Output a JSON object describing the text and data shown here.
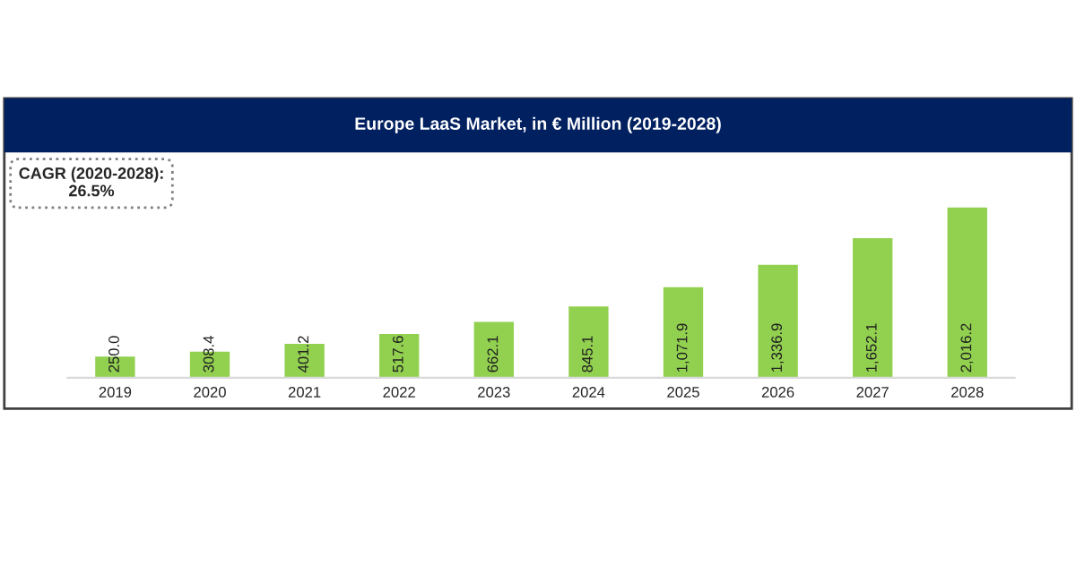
{
  "chart_data": {
    "type": "bar",
    "title": "Europe LaaS Market, in € Million (2019-2028)",
    "categories": [
      "2019",
      "2020",
      "2021",
      "2022",
      "2023",
      "2024",
      "2025",
      "2026",
      "2027",
      "2028"
    ],
    "values": [
      250.0,
      308.4,
      401.2,
      517.6,
      662.1,
      845.1,
      1071.9,
      1336.9,
      1652.1,
      2016.2
    ],
    "value_labels": [
      "250.0",
      "308.4",
      "401.2",
      "517.6",
      "662.1",
      "845.1",
      "1,071.9",
      "1,336.9",
      "1,652.1",
      "2,016.2"
    ],
    "color": "#92d050",
    "annotations": [
      "CAGR (2020-2028):\n26.5%"
    ],
    "tick_labels": "x",
    "grid": false,
    "legend": false
  }
}
